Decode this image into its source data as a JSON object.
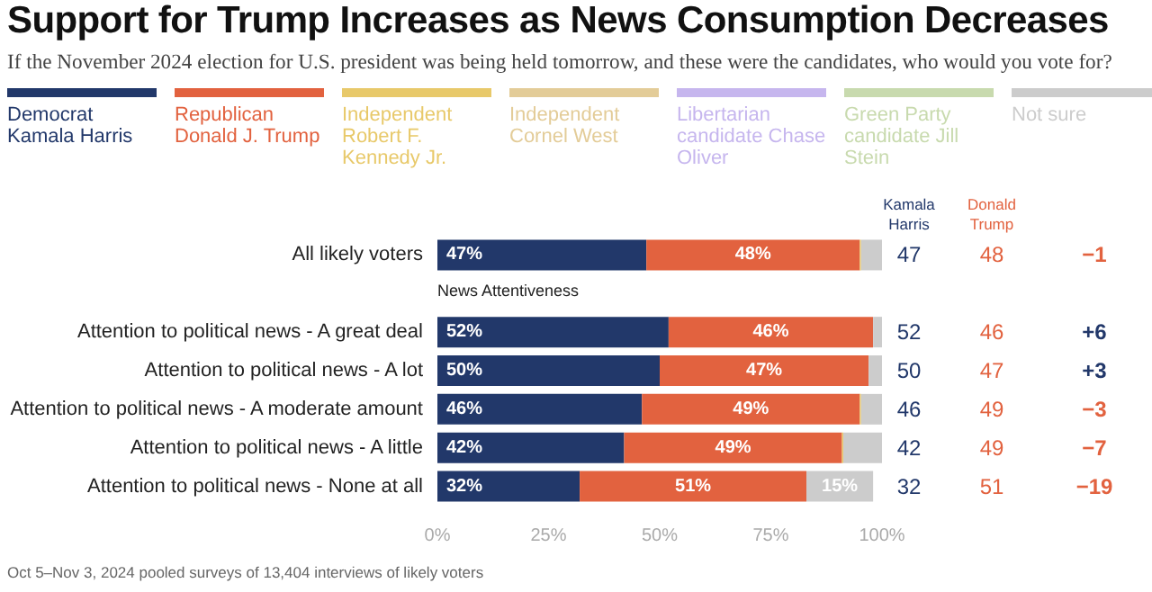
{
  "chart_data": {
    "type": "bar",
    "orientation": "horizontal",
    "stacked": true,
    "title": "Support for Trump Increases as News Consumption Decreases",
    "subtitle": "If the November 2024 election for U.S. president was being held tomorrow, and these were the candidates, who would you vote for?",
    "categories": [
      "All likely voters",
      null,
      "Attention to political news - A great deal",
      "Attention to political news - A lot",
      "Attention to political news - A moderate amount",
      "Attention to political news - A little",
      "Attention to political news - None at all"
    ],
    "series": [
      {
        "name": "Democrat Kamala Harris",
        "color": "#22386a",
        "values": [
          47,
          null,
          52,
          50,
          46,
          42,
          32
        ],
        "value_labels": [
          "47%",
          null,
          "52%",
          "50%",
          "46%",
          "42%",
          "32%"
        ]
      },
      {
        "name": "Republican Donald J. Trump",
        "color": "#e2623f",
        "values": [
          48,
          null,
          46,
          47,
          49,
          49,
          51
        ],
        "value_labels": [
          "48%",
          null,
          "46%",
          "47%",
          "49%",
          "49%",
          "51%"
        ]
      },
      {
        "name": "Independent Robert F. Kennedy Jr.",
        "color": "#e8c96a",
        "values": [
          0.3,
          null,
          0,
          0,
          0.3,
          0.3,
          0
        ]
      },
      {
        "name": "Independent Cornel West",
        "color": "#e3cc98",
        "values": [
          0,
          null,
          0,
          0,
          0,
          0,
          0
        ]
      },
      {
        "name": "Libertarian candidate Chase Oliver",
        "color": "#c6b6ee",
        "values": [
          0,
          null,
          0,
          0,
          0,
          0,
          0
        ]
      },
      {
        "name": "Green Party candidate Jill Stein",
        "color": "#c8daae",
        "values": [
          0,
          null,
          0,
          0,
          0,
          0,
          0
        ]
      },
      {
        "name": "Not sure",
        "color": "#cccccc",
        "values": [
          4.7,
          null,
          2,
          3,
          4.7,
          8.7,
          15
        ],
        "value_labels": [
          null,
          null,
          null,
          null,
          null,
          null,
          "15%"
        ]
      }
    ],
    "xlim": [
      0,
      100
    ],
    "xticks": [
      {
        "value": 0,
        "label": "0%"
      },
      {
        "value": 25,
        "label": "25%"
      },
      {
        "value": 50,
        "label": "50%"
      },
      {
        "value": 75,
        "label": "75%"
      },
      {
        "value": 100,
        "label": "100%"
      }
    ],
    "legend": "top",
    "grid": false,
    "annotations": [
      "News Attentiveness",
      "Kamala Harris",
      "Donald Trump",
      "47",
      "48",
      "−1",
      "52",
      "46",
      "+6",
      "50",
      "47",
      "+3",
      "46",
      "49",
      "−3",
      "42",
      "49",
      "−7",
      "32",
      "51",
      "−19",
      "Oct 5–Nov 3, 2024 pooled surveys of 13,404 interviews of likely voters"
    ]
  }
}
